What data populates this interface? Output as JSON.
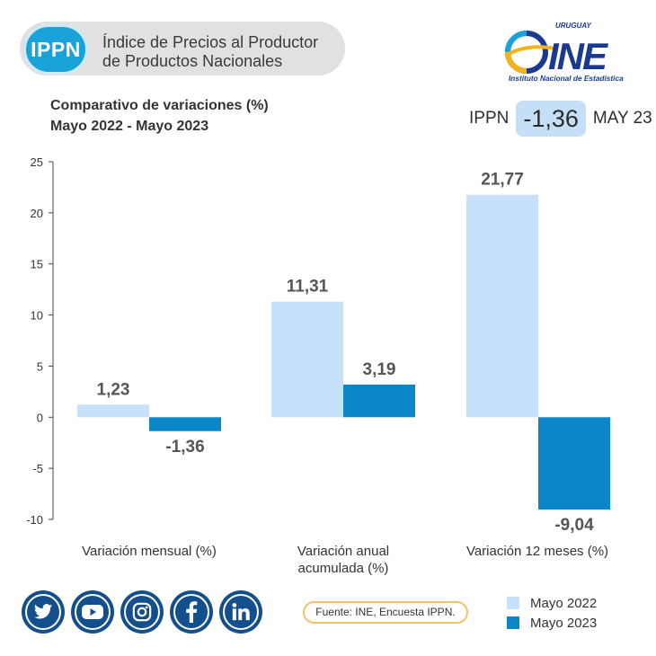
{
  "header": {
    "badge": "IPPN",
    "title_line1": "Índice de Precios al Productor",
    "title_line2": "de Productos Nacionales"
  },
  "logo": {
    "country": "URUGUAY",
    "acronym": "INE",
    "name": "Instituto Nacional de Estadística"
  },
  "subtitle": {
    "line1": "Comparativo de variaciones (%)",
    "line2": "Mayo 2022 - Mayo 2023"
  },
  "headline": {
    "prefix": "IPPN",
    "value": "-1,36",
    "suffix": "MAY 23"
  },
  "colors": {
    "mayo_2022": "#c7e1fa",
    "mayo_2023": "#0a86c9",
    "accent": "#19a3d9",
    "social": "#134f8c"
  },
  "chart_data": {
    "type": "bar",
    "categories": [
      "Variación mensual (%)",
      "Variación anual acumulada (%)",
      "Variación 12 meses (%)"
    ],
    "series": [
      {
        "name": "Mayo 2022",
        "values": [
          1.23,
          11.31,
          21.77
        ],
        "labels": [
          "1,23",
          "11,31",
          "21,77"
        ]
      },
      {
        "name": "Mayo 2023",
        "values": [
          -1.36,
          3.19,
          -9.04
        ],
        "labels": [
          "-1,36",
          "3,19",
          "-9,04"
        ]
      }
    ],
    "ylim": [
      -10,
      25
    ],
    "yticks": [
      "25",
      "20",
      "15",
      "10",
      "5",
      "0",
      "-5",
      "-10"
    ],
    "ytick_values": [
      25,
      20,
      15,
      10,
      5,
      0,
      -5,
      -10
    ],
    "legend": "bottom-right",
    "grid": false
  },
  "social": [
    "twitter-icon",
    "youtube-icon",
    "instagram-icon",
    "facebook-icon",
    "linkedin-icon"
  ],
  "source": "Fuente:  INE, Encuesta IPPN.",
  "legend": {
    "item1": "Mayo 2022",
    "item2": "Mayo 2023"
  }
}
